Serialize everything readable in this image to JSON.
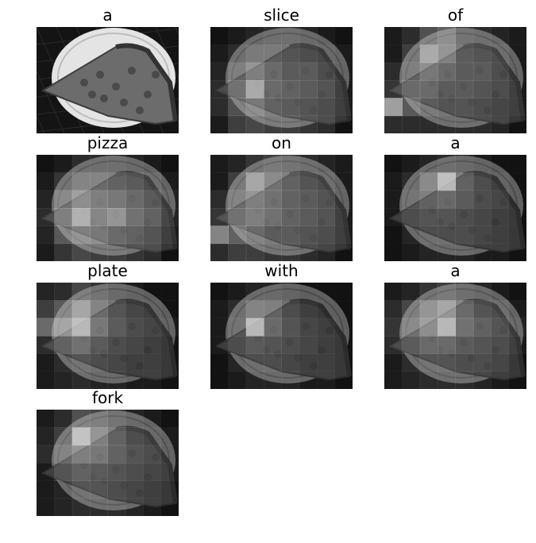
{
  "figure": {
    "panels": [
      {
        "word": "a",
        "kind": "original"
      },
      {
        "word": "slice",
        "kind": "attention",
        "attention": [
          [
            0.05,
            0.1,
            0.15,
            0.2,
            0.2,
            0.15,
            0.1,
            0.05
          ],
          [
            0.1,
            0.2,
            0.3,
            0.3,
            0.25,
            0.2,
            0.15,
            0.1
          ],
          [
            0.15,
            0.35,
            0.55,
            0.4,
            0.3,
            0.3,
            0.2,
            0.1
          ],
          [
            0.2,
            0.45,
            0.85,
            0.4,
            0.35,
            0.3,
            0.25,
            0.1
          ],
          [
            0.2,
            0.4,
            0.5,
            0.35,
            0.3,
            0.25,
            0.2,
            0.1
          ],
          [
            0.1,
            0.3,
            0.35,
            0.3,
            0.3,
            0.25,
            0.2,
            0.05
          ]
        ]
      },
      {
        "word": "of",
        "kind": "attention",
        "attention": [
          [
            0.1,
            0.2,
            0.4,
            0.5,
            0.25,
            0.2,
            0.15,
            0.1
          ],
          [
            0.1,
            0.3,
            0.75,
            0.55,
            0.3,
            0.25,
            0.2,
            0.1
          ],
          [
            0.2,
            0.35,
            0.5,
            0.4,
            0.3,
            0.3,
            0.2,
            0.1
          ],
          [
            0.25,
            0.4,
            0.4,
            0.3,
            0.3,
            0.25,
            0.2,
            0.1
          ],
          [
            0.85,
            0.45,
            0.3,
            0.25,
            0.25,
            0.2,
            0.15,
            0.1
          ],
          [
            0.2,
            0.2,
            0.2,
            0.2,
            0.2,
            0.2,
            0.15,
            0.05
          ]
        ]
      },
      {
        "word": "pizza",
        "kind": "attention",
        "attention": [
          [
            0.05,
            0.1,
            0.2,
            0.2,
            0.2,
            0.15,
            0.1,
            0.05
          ],
          [
            0.1,
            0.25,
            0.4,
            0.4,
            0.35,
            0.3,
            0.2,
            0.1
          ],
          [
            0.15,
            0.45,
            0.65,
            0.55,
            0.5,
            0.4,
            0.3,
            0.15
          ],
          [
            0.2,
            0.55,
            0.9,
            0.6,
            0.7,
            0.45,
            0.35,
            0.15
          ],
          [
            0.15,
            0.45,
            0.55,
            0.5,
            0.4,
            0.35,
            0.25,
            0.1
          ],
          [
            0.1,
            0.25,
            0.35,
            0.3,
            0.3,
            0.25,
            0.2,
            0.05
          ]
        ]
      },
      {
        "word": "on",
        "kind": "attention",
        "attention": [
          [
            0.1,
            0.15,
            0.25,
            0.3,
            0.25,
            0.2,
            0.15,
            0.1
          ],
          [
            0.1,
            0.3,
            0.7,
            0.45,
            0.35,
            0.25,
            0.2,
            0.1
          ],
          [
            0.2,
            0.4,
            0.55,
            0.45,
            0.35,
            0.3,
            0.25,
            0.1
          ],
          [
            0.25,
            0.45,
            0.55,
            0.45,
            0.35,
            0.3,
            0.25,
            0.1
          ],
          [
            0.7,
            0.5,
            0.4,
            0.3,
            0.3,
            0.25,
            0.2,
            0.1
          ],
          [
            0.2,
            0.3,
            0.3,
            0.25,
            0.25,
            0.2,
            0.15,
            0.05
          ]
        ]
      },
      {
        "word": "a",
        "kind": "attention",
        "attention": [
          [
            0.05,
            0.1,
            0.15,
            0.2,
            0.15,
            0.1,
            0.05,
            0.05
          ],
          [
            0.1,
            0.2,
            0.45,
            0.95,
            0.35,
            0.2,
            0.1,
            0.05
          ],
          [
            0.1,
            0.25,
            0.35,
            0.4,
            0.3,
            0.2,
            0.15,
            0.05
          ],
          [
            0.1,
            0.2,
            0.25,
            0.25,
            0.2,
            0.15,
            0.1,
            0.05
          ],
          [
            0.05,
            0.15,
            0.2,
            0.2,
            0.2,
            0.15,
            0.1,
            0.05
          ],
          [
            0.05,
            0.1,
            0.15,
            0.15,
            0.15,
            0.1,
            0.1,
            0.05
          ]
        ]
      },
      {
        "word": "plate",
        "kind": "attention",
        "attention": [
          [
            0.15,
            0.2,
            0.35,
            0.25,
            0.15,
            0.1,
            0.05,
            0.05
          ],
          [
            0.3,
            0.45,
            0.7,
            0.4,
            0.25,
            0.15,
            0.1,
            0.05
          ],
          [
            0.55,
            0.7,
            0.95,
            0.5,
            0.3,
            0.2,
            0.15,
            0.1
          ],
          [
            0.2,
            0.35,
            0.45,
            0.3,
            0.2,
            0.15,
            0.1,
            0.05
          ],
          [
            0.1,
            0.2,
            0.25,
            0.2,
            0.15,
            0.1,
            0.1,
            0.05
          ],
          [
            0.1,
            0.15,
            0.2,
            0.15,
            0.15,
            0.1,
            0.1,
            0.05
          ]
        ]
      },
      {
        "word": "with",
        "kind": "attention",
        "attention": [
          [
            0.05,
            0.1,
            0.15,
            0.15,
            0.1,
            0.05,
            0.05,
            0.05
          ],
          [
            0.1,
            0.2,
            0.4,
            0.35,
            0.2,
            0.1,
            0.05,
            0.05
          ],
          [
            0.1,
            0.25,
            0.95,
            0.4,
            0.25,
            0.15,
            0.1,
            0.05
          ],
          [
            0.1,
            0.2,
            0.3,
            0.25,
            0.2,
            0.15,
            0.1,
            0.05
          ],
          [
            0.05,
            0.15,
            0.2,
            0.2,
            0.15,
            0.1,
            0.1,
            0.05
          ],
          [
            0.05,
            0.1,
            0.15,
            0.15,
            0.15,
            0.1,
            0.1,
            0.05
          ]
        ]
      },
      {
        "word": "a",
        "kind": "attention",
        "attention": [
          [
            0.1,
            0.15,
            0.25,
            0.3,
            0.2,
            0.15,
            0.1,
            0.05
          ],
          [
            0.2,
            0.35,
            0.55,
            0.7,
            0.4,
            0.25,
            0.2,
            0.1
          ],
          [
            0.25,
            0.45,
            0.65,
            0.95,
            0.45,
            0.35,
            0.25,
            0.15
          ],
          [
            0.2,
            0.3,
            0.4,
            0.4,
            0.3,
            0.25,
            0.2,
            0.1
          ],
          [
            0.1,
            0.2,
            0.25,
            0.25,
            0.2,
            0.2,
            0.15,
            0.05
          ],
          [
            0.1,
            0.15,
            0.2,
            0.2,
            0.2,
            0.15,
            0.1,
            0.05
          ]
        ]
      },
      {
        "word": "fork",
        "kind": "attention",
        "attention": [
          [
            0.1,
            0.2,
            0.4,
            0.35,
            0.25,
            0.15,
            0.1,
            0.05
          ],
          [
            0.15,
            0.3,
            0.98,
            0.55,
            0.35,
            0.2,
            0.15,
            0.1
          ],
          [
            0.2,
            0.4,
            0.55,
            0.5,
            0.35,
            0.25,
            0.2,
            0.1
          ],
          [
            0.1,
            0.25,
            0.35,
            0.3,
            0.25,
            0.2,
            0.15,
            0.1
          ],
          [
            0.1,
            0.15,
            0.25,
            0.25,
            0.2,
            0.15,
            0.1,
            0.05
          ],
          [
            0.1,
            0.15,
            0.2,
            0.2,
            0.2,
            0.15,
            0.1,
            0.05
          ]
        ]
      }
    ]
  }
}
